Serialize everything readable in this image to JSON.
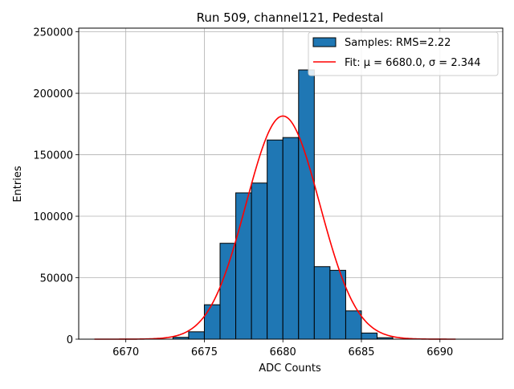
{
  "chart_data": {
    "type": "bar",
    "title": "Run 509, channel121, Pedestal",
    "xlabel": "ADC Counts",
    "ylabel": "Entries",
    "xlim": [
      6667,
      6694
    ],
    "ylim": [
      0,
      253000
    ],
    "grid": true,
    "legend_position": "top-right",
    "bin_width": 1,
    "x_ticks": [
      6670,
      6675,
      6680,
      6685,
      6690
    ],
    "y_ticks": [
      0,
      50000,
      100000,
      150000,
      200000,
      250000
    ],
    "series": [
      {
        "name": "Samples: RMS=2.22",
        "kind": "histogram",
        "color": "#1f77b4",
        "edgecolor": "#000000",
        "bin_edges_start": [
          6673,
          6674,
          6675,
          6676,
          6677,
          6678,
          6679,
          6680,
          6681,
          6682,
          6683,
          6684,
          6685,
          6686
        ],
        "values": [
          1500,
          6000,
          28000,
          78000,
          119000,
          127000,
          162000,
          164000,
          219000,
          59000,
          56000,
          23000,
          5000,
          1200
        ]
      },
      {
        "name": "Fit: μ = 6680.0, σ = 2.344",
        "kind": "gaussian-fit",
        "color": "#ff0000",
        "mu": 6680.0,
        "sigma": 2.344,
        "amplitude": 181500,
        "x_range": [
          6668,
          6691
        ]
      }
    ]
  }
}
